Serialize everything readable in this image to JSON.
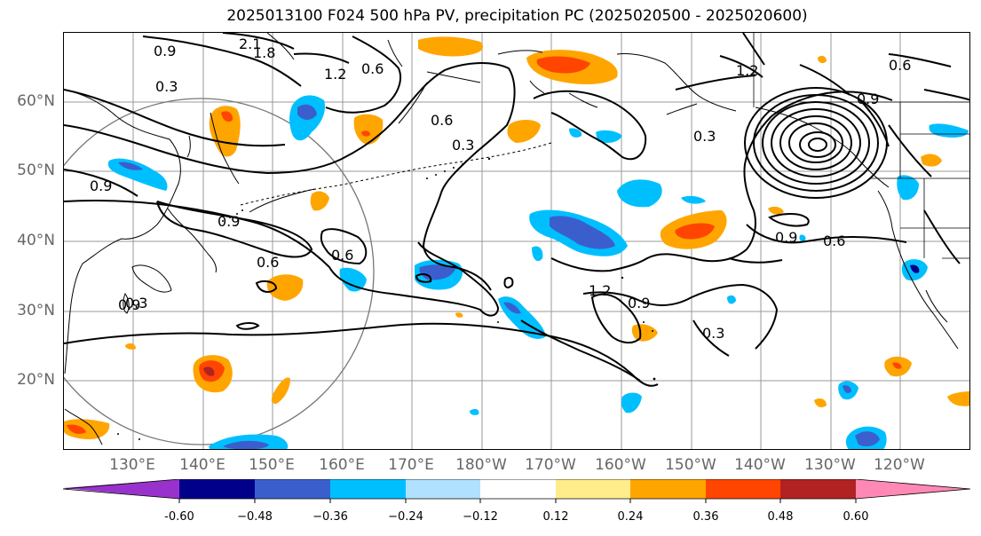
{
  "title": "2025013100 F024 500 hPa PV, precipitation PC (2025020500 - 2025020600)",
  "lat_labels": [
    "60°N",
    "50°N",
    "40°N",
    "30°N",
    "20°N"
  ],
  "lon_labels": [
    "130°E",
    "140°E",
    "150°E",
    "160°E",
    "170°E",
    "180°W",
    "170°W",
    "160°W",
    "150°W",
    "140°W",
    "130°W",
    "120°W"
  ],
  "contour_labels": [
    "2.1",
    "1.8",
    "0.9",
    "1.2",
    "0.6",
    "0.3",
    "0.9",
    "0.6",
    "0.3",
    "0.9",
    "0.6",
    "0.6",
    "1.2",
    "0.9",
    "0.3",
    "1.2",
    "0.6",
    "0.9",
    "0.3",
    "0.9",
    "0.6",
    "0.9",
    "0.3"
  ],
  "colorbar": {
    "labels": [
      "-0.60",
      "−0.48",
      "−0.36",
      "−0.24",
      "−0.12",
      "0.12",
      "0.24",
      "0.36",
      "0.48",
      "0.60"
    ],
    "colors": [
      "#9932cc",
      "#00008b",
      "#3a5fcd",
      "#00bfff",
      "#b0e2ff",
      "#ffffff",
      "#ffec8b",
      "#ffa500",
      "#ff4500",
      "#b22222",
      "#ff89b4"
    ]
  }
}
